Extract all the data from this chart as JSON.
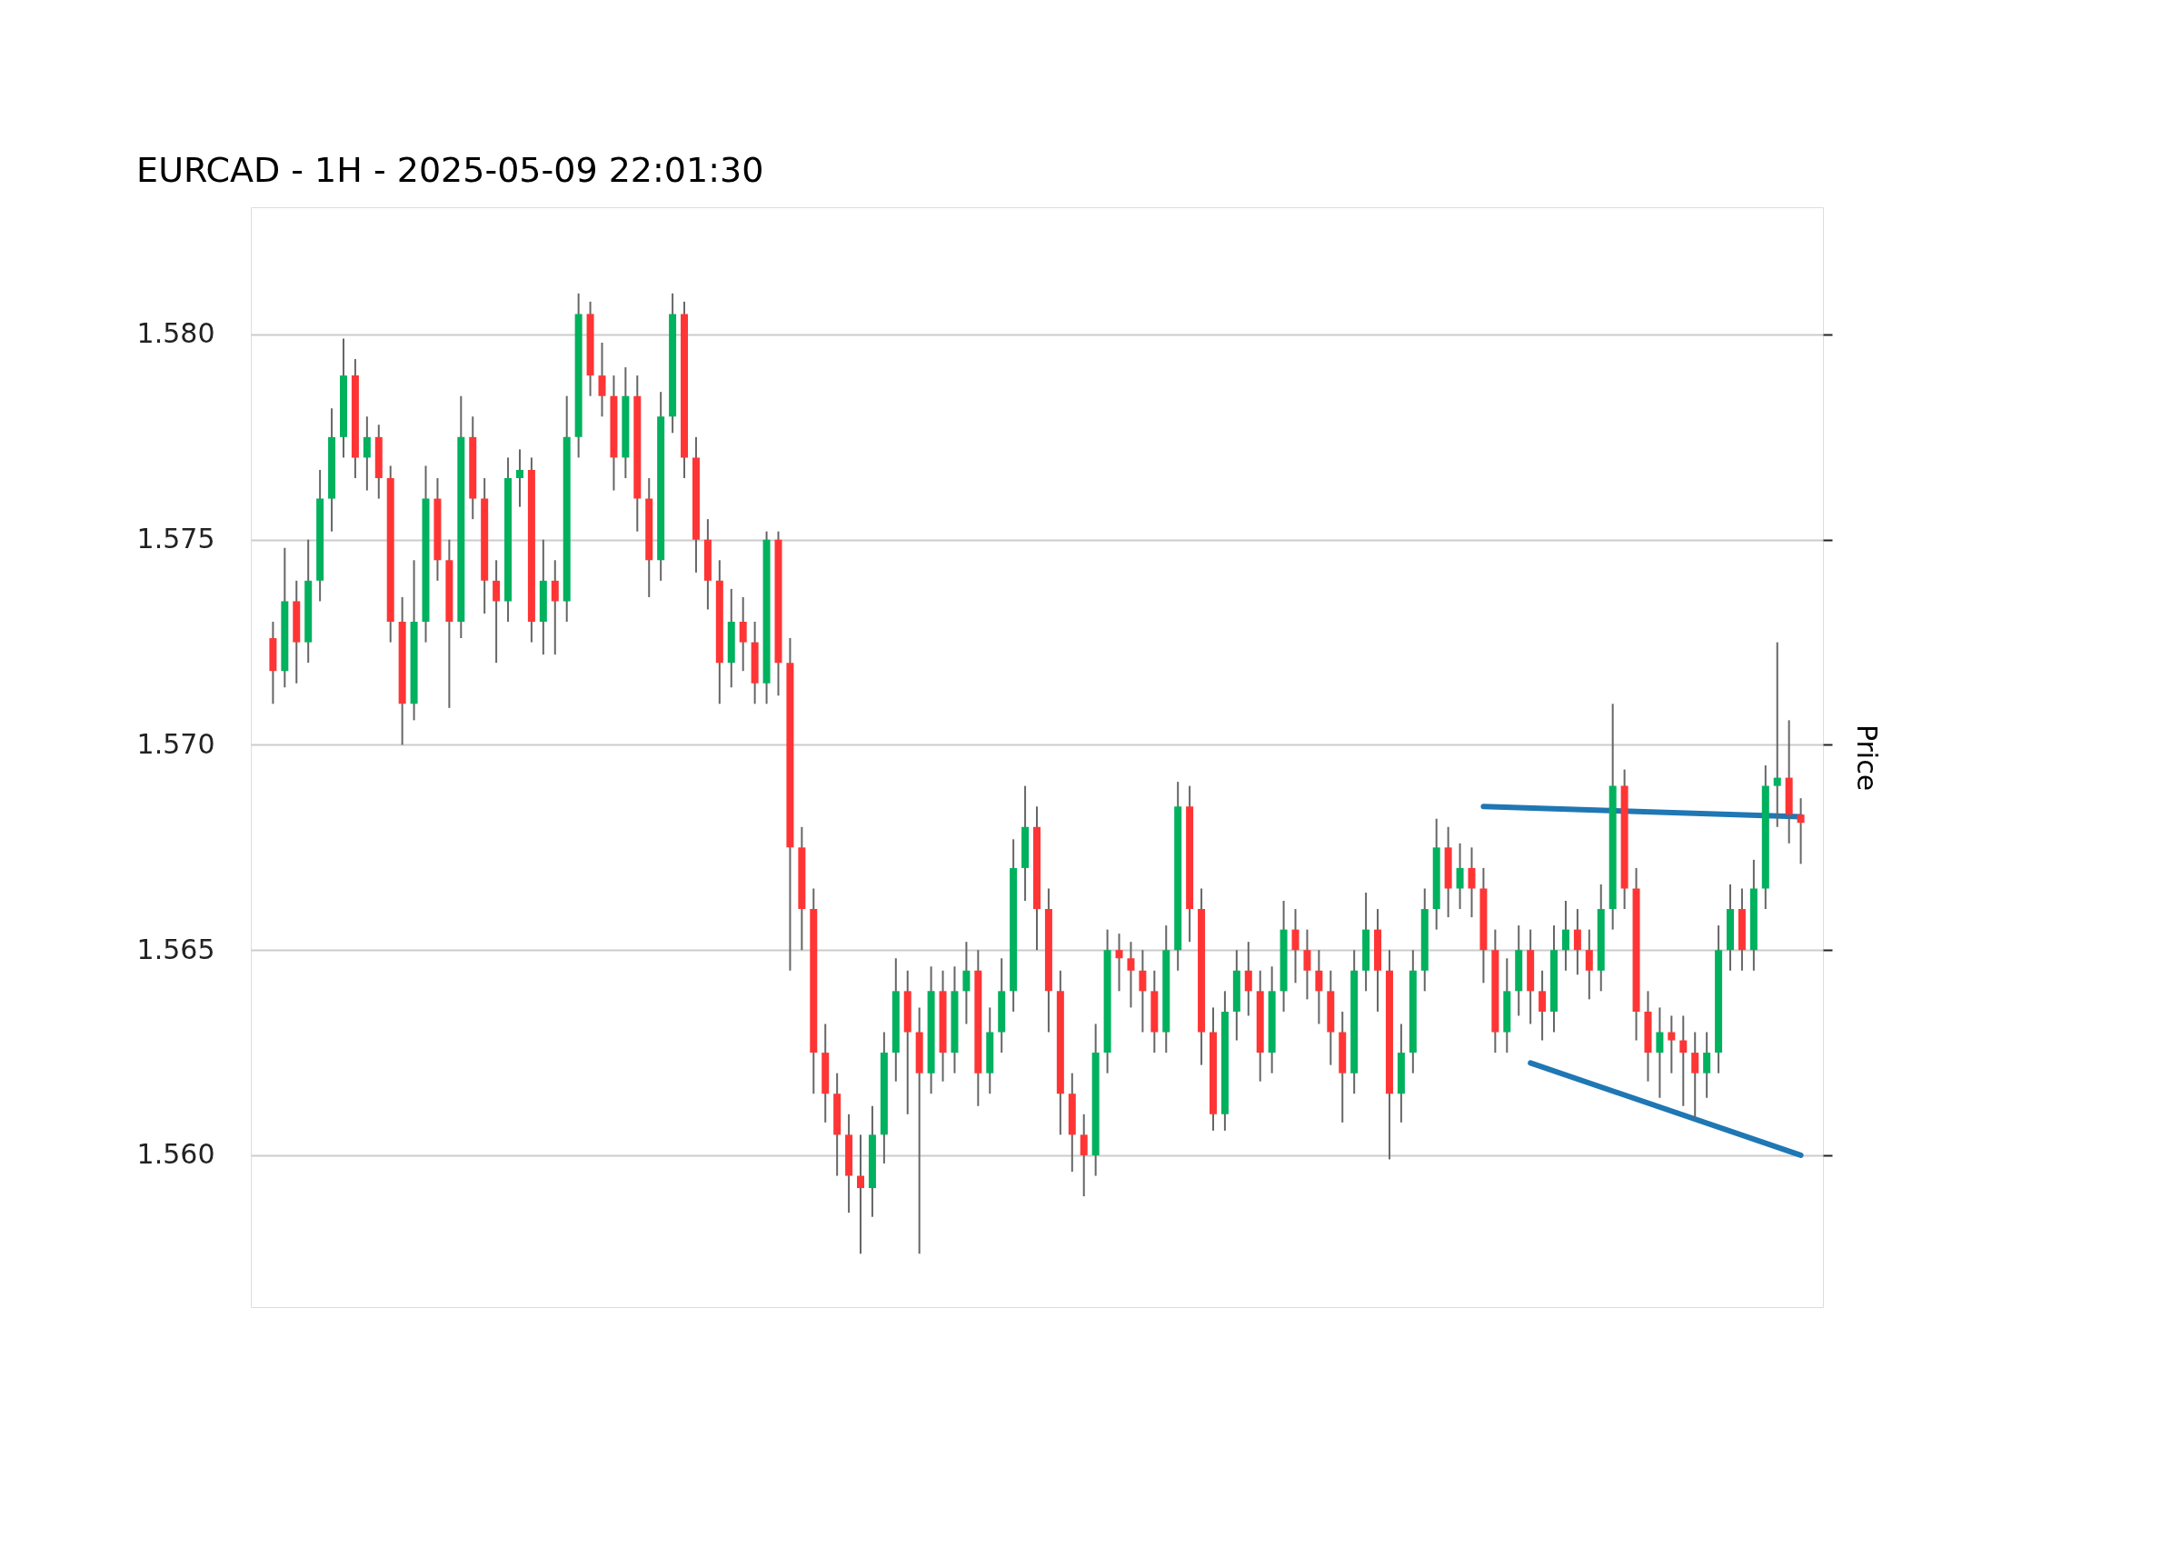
{
  "chart_data": {
    "type": "candlestick",
    "title": "EURCAD - 1H - 2025-05-09 22:01:30",
    "ylabel": "Price",
    "categories": [
      null,
      null,
      null,
      null,
      null,
      null,
      null,
      null,
      null,
      null,
      null,
      null,
      null,
      null,
      null,
      null,
      null,
      null,
      null,
      null,
      null,
      null,
      null,
      null,
      null,
      null,
      null,
      null,
      null,
      null,
      null,
      null,
      null,
      null,
      null,
      null,
      null,
      null,
      null,
      null,
      null,
      null,
      null,
      null,
      null,
      null,
      null,
      null,
      null,
      null,
      null,
      null,
      null,
      null,
      null,
      null,
      null,
      null,
      null,
      null,
      null,
      null,
      null,
      null,
      null,
      null,
      null,
      null,
      null,
      null,
      null,
      null,
      null,
      null,
      null,
      null,
      null,
      null,
      null,
      null,
      null,
      null,
      null,
      null,
      null,
      null,
      null,
      null,
      null,
      null,
      null,
      null,
      null,
      null,
      null,
      null,
      null,
      null,
      null,
      null,
      null,
      null,
      null,
      null,
      null,
      null,
      null,
      null,
      null,
      null,
      null,
      null,
      null,
      null,
      null,
      null,
      null,
      null,
      null,
      null,
      null,
      null,
      null,
      null,
      null,
      null,
      null,
      null,
      null,
      null,
      null
    ],
    "colors": [
      "#ff3535",
      "#00b15e",
      "#ff3535",
      "#00b15e",
      "#00b15e",
      "#00b15e",
      "#00b15e",
      "#ff3535",
      "#00b15e",
      "#ff3535",
      "#ff3535",
      "#ff3535",
      "#00b15e",
      "#00b15e",
      "#ff3535",
      "#ff3535",
      "#00b15e",
      "#ff3535",
      "#ff3535",
      "#ff3535",
      "#00b15e",
      "#00b15e",
      "#ff3535",
      "#00b15e",
      "#ff3535",
      "#00b15e",
      "#00b15e",
      "#ff3535",
      "#ff3535",
      "#ff3535",
      "#00b15e",
      "#ff3535",
      "#ff3535",
      "#00b15e",
      "#00b15e",
      "#ff3535",
      "#ff3535",
      "#ff3535",
      "#ff3535",
      "#00b15e",
      "#ff3535",
      "#ff3535",
      "#00b15e",
      "#ff3535",
      "#ff3535",
      "#ff3535",
      "#ff3535",
      "#ff3535",
      "#ff3535",
      "#ff3535",
      "#ff3535",
      "#00b15e",
      "#00b15e",
      "#00b15e",
      "#ff3535",
      "#ff3535",
      "#00b15e",
      "#ff3535",
      "#00b15e",
      "#00b15e",
      "#ff3535",
      "#00b15e",
      "#00b15e",
      "#00b15e",
      "#00b15e",
      "#ff3535",
      "#ff3535",
      "#ff3535",
      "#ff3535",
      "#ff3535",
      "#00b15e",
      "#00b15e",
      "#ff3535",
      "#ff3535",
      "#ff3535",
      "#ff3535",
      "#00b15e",
      "#00b15e",
      "#ff3535",
      "#ff3535",
      "#ff3535",
      "#00b15e",
      "#00b15e",
      "#ff3535",
      "#ff3535",
      "#00b15e",
      "#00b15e",
      "#ff3535",
      "#ff3535",
      "#ff3535",
      "#ff3535",
      "#ff3535",
      "#00b15e",
      "#00b15e",
      "#ff3535",
      "#ff3535",
      "#00b15e",
      "#00b15e",
      "#00b15e",
      "#00b15e",
      "#ff3535",
      "#00b15e",
      "#ff3535",
      "#ff3535",
      "#ff3535",
      "#00b15e",
      "#00b15e",
      "#ff3535",
      "#ff3535",
      "#00b15e",
      "#00b15e",
      "#ff3535",
      "#ff3535",
      "#00b15e",
      "#00b15e",
      "#ff3535",
      "#ff3535",
      "#ff3535",
      "#00b15e",
      "#ff3535",
      "#ff3535",
      "#ff3535",
      "#00b15e",
      "#00b15e",
      "#00b15e",
      "#ff3535",
      "#00b15e",
      "#00b15e",
      "#00b15e",
      "#ff3535",
      "#ff3535"
    ],
    "ohlc": [
      [
        1.5726,
        1.573,
        1.571,
        1.5718
      ],
      [
        1.5718,
        1.5748,
        1.5714,
        1.5735
      ],
      [
        1.5735,
        1.574,
        1.5715,
        1.5725
      ],
      [
        1.5725,
        1.575,
        1.572,
        1.574
      ],
      [
        1.574,
        1.5767,
        1.5735,
        1.576
      ],
      [
        1.576,
        1.5782,
        1.5752,
        1.5775
      ],
      [
        1.5775,
        1.5799,
        1.577,
        1.579
      ],
      [
        1.579,
        1.5794,
        1.5765,
        1.577
      ],
      [
        1.577,
        1.578,
        1.5762,
        1.5775
      ],
      [
        1.5775,
        1.5778,
        1.576,
        1.5765
      ],
      [
        1.5765,
        1.5768,
        1.5725,
        1.573
      ],
      [
        1.573,
        1.5736,
        1.57,
        1.571
      ],
      [
        1.571,
        1.5745,
        1.5706,
        1.573
      ],
      [
        1.573,
        1.5768,
        1.5725,
        1.576
      ],
      [
        1.576,
        1.5765,
        1.574,
        1.5745
      ],
      [
        1.5745,
        1.575,
        1.5709,
        1.573
      ],
      [
        1.573,
        1.5785,
        1.5726,
        1.5775
      ],
      [
        1.5775,
        1.578,
        1.5755,
        1.576
      ],
      [
        1.576,
        1.5765,
        1.5732,
        1.574
      ],
      [
        1.574,
        1.5745,
        1.572,
        1.5735
      ],
      [
        1.5735,
        1.577,
        1.573,
        1.5765
      ],
      [
        1.5765,
        1.5772,
        1.5758,
        1.5767
      ],
      [
        1.5767,
        1.577,
        1.5725,
        1.573
      ],
      [
        1.573,
        1.575,
        1.5722,
        1.574
      ],
      [
        1.574,
        1.5745,
        1.5722,
        1.5735
      ],
      [
        1.5735,
        1.5785,
        1.573,
        1.5775
      ],
      [
        1.5775,
        1.581,
        1.577,
        1.5805
      ],
      [
        1.5805,
        1.5808,
        1.5785,
        1.579
      ],
      [
        1.579,
        1.5798,
        1.578,
        1.5785
      ],
      [
        1.5785,
        1.579,
        1.5762,
        1.577
      ],
      [
        1.577,
        1.5792,
        1.5765,
        1.5785
      ],
      [
        1.5785,
        1.579,
        1.5752,
        1.576
      ],
      [
        1.576,
        1.5765,
        1.5736,
        1.5745
      ],
      [
        1.5745,
        1.5786,
        1.574,
        1.578
      ],
      [
        1.578,
        1.581,
        1.5776,
        1.5805
      ],
      [
        1.5805,
        1.5808,
        1.5765,
        1.577
      ],
      [
        1.577,
        1.5775,
        1.5742,
        1.575
      ],
      [
        1.575,
        1.5755,
        1.5733,
        1.574
      ],
      [
        1.574,
        1.5745,
        1.571,
        1.572
      ],
      [
        1.572,
        1.5738,
        1.5714,
        1.573
      ],
      [
        1.573,
        1.5736,
        1.5718,
        1.5725
      ],
      [
        1.5725,
        1.573,
        1.571,
        1.5715
      ],
      [
        1.5715,
        1.5752,
        1.571,
        1.575
      ],
      [
        1.575,
        1.5752,
        1.5712,
        1.572
      ],
      [
        1.572,
        1.5726,
        1.5645,
        1.5675
      ],
      [
        1.5675,
        1.568,
        1.565,
        1.566
      ],
      [
        1.566,
        1.5665,
        1.5615,
        1.5625
      ],
      [
        1.5625,
        1.5632,
        1.5608,
        1.5615
      ],
      [
        1.5615,
        1.562,
        1.5595,
        1.5605
      ],
      [
        1.5605,
        1.561,
        1.5586,
        1.5595
      ],
      [
        1.5595,
        1.5605,
        1.5576,
        1.5592
      ],
      [
        1.5592,
        1.5612,
        1.5585,
        1.5605
      ],
      [
        1.5605,
        1.563,
        1.5598,
        1.5625
      ],
      [
        1.5625,
        1.5648,
        1.5618,
        1.564
      ],
      [
        1.564,
        1.5645,
        1.561,
        1.563
      ],
      [
        1.563,
        1.5636,
        1.5576,
        1.562
      ],
      [
        1.562,
        1.5646,
        1.5615,
        1.564
      ],
      [
        1.564,
        1.5645,
        1.5618,
        1.5625
      ],
      [
        1.5625,
        1.5646,
        1.562,
        1.564
      ],
      [
        1.564,
        1.5652,
        1.5632,
        1.5645
      ],
      [
        1.5645,
        1.565,
        1.5612,
        1.562
      ],
      [
        1.562,
        1.5636,
        1.5615,
        1.563
      ],
      [
        1.563,
        1.5648,
        1.5625,
        1.564
      ],
      [
        1.564,
        1.5677,
        1.5635,
        1.567
      ],
      [
        1.567,
        1.569,
        1.5662,
        1.568
      ],
      [
        1.568,
        1.5685,
        1.565,
        1.566
      ],
      [
        1.566,
        1.5665,
        1.563,
        1.564
      ],
      [
        1.564,
        1.5645,
        1.5605,
        1.5615
      ],
      [
        1.5615,
        1.562,
        1.5596,
        1.5605
      ],
      [
        1.5605,
        1.561,
        1.559,
        1.56
      ],
      [
        1.56,
        1.5632,
        1.5595,
        1.5625
      ],
      [
        1.5625,
        1.5655,
        1.562,
        1.565
      ],
      [
        1.565,
        1.5654,
        1.564,
        1.5648
      ],
      [
        1.5648,
        1.5652,
        1.5636,
        1.5645
      ],
      [
        1.5645,
        1.565,
        1.563,
        1.564
      ],
      [
        1.564,
        1.5645,
        1.5625,
        1.563
      ],
      [
        1.563,
        1.5656,
        1.5625,
        1.565
      ],
      [
        1.565,
        1.5691,
        1.5645,
        1.5685
      ],
      [
        1.5685,
        1.569,
        1.5652,
        1.566
      ],
      [
        1.566,
        1.5665,
        1.5622,
        1.563
      ],
      [
        1.563,
        1.5636,
        1.5606,
        1.561
      ],
      [
        1.561,
        1.564,
        1.5606,
        1.5635
      ],
      [
        1.5635,
        1.565,
        1.5628,
        1.5645
      ],
      [
        1.5645,
        1.5652,
        1.5634,
        1.564
      ],
      [
        1.564,
        1.5645,
        1.5618,
        1.5625
      ],
      [
        1.5625,
        1.5646,
        1.562,
        1.564
      ],
      [
        1.564,
        1.5662,
        1.5635,
        1.5655
      ],
      [
        1.5655,
        1.566,
        1.5642,
        1.565
      ],
      [
        1.565,
        1.5655,
        1.5638,
        1.5645
      ],
      [
        1.5645,
        1.565,
        1.5632,
        1.564
      ],
      [
        1.564,
        1.5645,
        1.5622,
        1.563
      ],
      [
        1.563,
        1.5635,
        1.5608,
        1.562
      ],
      [
        1.562,
        1.565,
        1.5615,
        1.5645
      ],
      [
        1.5645,
        1.5664,
        1.564,
        1.5655
      ],
      [
        1.5655,
        1.566,
        1.5635,
        1.5645
      ],
      [
        1.5645,
        1.565,
        1.5599,
        1.5615
      ],
      [
        1.5615,
        1.5632,
        1.5608,
        1.5625
      ],
      [
        1.5625,
        1.565,
        1.562,
        1.5645
      ],
      [
        1.5645,
        1.5665,
        1.564,
        1.566
      ],
      [
        1.566,
        1.5682,
        1.5655,
        1.5675
      ],
      [
        1.5675,
        1.568,
        1.5658,
        1.5665
      ],
      [
        1.5665,
        1.5676,
        1.566,
        1.567
      ],
      [
        1.567,
        1.5675,
        1.5658,
        1.5665
      ],
      [
        1.5665,
        1.567,
        1.5642,
        1.565
      ],
      [
        1.565,
        1.5655,
        1.5625,
        1.563
      ],
      [
        1.563,
        1.5648,
        1.5625,
        1.564
      ],
      [
        1.564,
        1.5656,
        1.5634,
        1.565
      ],
      [
        1.565,
        1.5655,
        1.5632,
        1.564
      ],
      [
        1.564,
        1.5645,
        1.5628,
        1.5635
      ],
      [
        1.5635,
        1.5656,
        1.563,
        1.565
      ],
      [
        1.565,
        1.5662,
        1.5645,
        1.5655
      ],
      [
        1.5655,
        1.566,
        1.5644,
        1.565
      ],
      [
        1.565,
        1.5655,
        1.5638,
        1.5645
      ],
      [
        1.5645,
        1.5666,
        1.564,
        1.566
      ],
      [
        1.566,
        1.571,
        1.5655,
        1.569
      ],
      [
        1.569,
        1.5694,
        1.566,
        1.5665
      ],
      [
        1.5665,
        1.567,
        1.5628,
        1.5635
      ],
      [
        1.5635,
        1.564,
        1.5618,
        1.5625
      ],
      [
        1.5625,
        1.5636,
        1.5614,
        1.563
      ],
      [
        1.563,
        1.5634,
        1.562,
        1.5628
      ],
      [
        1.5628,
        1.5634,
        1.5612,
        1.5625
      ],
      [
        1.5625,
        1.563,
        1.5609,
        1.562
      ],
      [
        1.562,
        1.563,
        1.5614,
        1.5625
      ],
      [
        1.5625,
        1.5656,
        1.562,
        1.565
      ],
      [
        1.565,
        1.5666,
        1.5645,
        1.566
      ],
      [
        1.566,
        1.5665,
        1.5645,
        1.565
      ],
      [
        1.565,
        1.5672,
        1.5645,
        1.5665
      ],
      [
        1.5665,
        1.5695,
        1.566,
        1.569
      ],
      [
        1.569,
        1.5725,
        1.568,
        1.5692
      ],
      [
        1.5692,
        1.5706,
        1.5676,
        1.5683
      ],
      [
        1.5683,
        1.5687,
        1.5671,
        1.5681
      ]
    ],
    "series": [
      {
        "type": "line",
        "color": "#1f77b4",
        "values": [
          null,
          null,
          null,
          null,
          null,
          null,
          null,
          null,
          null,
          null,
          null,
          null,
          null,
          null,
          null,
          null,
          null,
          null,
          null,
          null,
          null,
          null,
          null,
          null,
          null,
          null,
          null,
          null,
          null,
          null,
          null,
          null,
          null,
          null,
          null,
          null,
          null,
          null,
          null,
          null,
          null,
          null,
          null,
          null,
          null,
          null,
          null,
          null,
          null,
          null,
          null,
          null,
          null,
          null,
          null,
          null,
          null,
          null,
          null,
          null,
          null,
          null,
          null,
          null,
          null,
          null,
          null,
          null,
          null,
          null,
          null,
          null,
          null,
          null,
          null,
          null,
          null,
          null,
          null,
          null,
          null,
          null,
          null,
          null,
          null,
          null,
          null,
          null,
          null,
          null,
          null,
          null,
          null,
          null,
          null,
          null,
          null,
          null,
          null,
          null,
          null,
          null,
          null,
          1.5685,
          null,
          null,
          null,
          null,
          null,
          null,
          null,
          null,
          null,
          null,
          null,
          null,
          null,
          null,
          null,
          null,
          null,
          null,
          null,
          null,
          null,
          null,
          null,
          null,
          null,
          null,
          1.56825
        ]
      },
      {
        "type": "line",
        "color": "#1f77b4",
        "values": [
          null,
          null,
          null,
          null,
          null,
          null,
          null,
          null,
          null,
          null,
          null,
          null,
          null,
          null,
          null,
          null,
          null,
          null,
          null,
          null,
          null,
          null,
          null,
          null,
          null,
          null,
          null,
          null,
          null,
          null,
          null,
          null,
          null,
          null,
          null,
          null,
          null,
          null,
          null,
          null,
          null,
          null,
          null,
          null,
          null,
          null,
          null,
          null,
          null,
          null,
          null,
          null,
          null,
          null,
          null,
          null,
          null,
          null,
          null,
          null,
          null,
          null,
          null,
          null,
          null,
          null,
          null,
          null,
          null,
          null,
          null,
          null,
          null,
          null,
          null,
          null,
          null,
          null,
          null,
          null,
          null,
          null,
          null,
          null,
          null,
          null,
          null,
          null,
          null,
          null,
          null,
          null,
          null,
          null,
          null,
          null,
          null,
          null,
          null,
          null,
          null,
          null,
          null,
          null,
          null,
          null,
          null,
          1.56225,
          null,
          null,
          null,
          null,
          null,
          null,
          null,
          null,
          null,
          null,
          null,
          null,
          null,
          null,
          null,
          null,
          null,
          null,
          null,
          null,
          null,
          null,
          1.56
        ]
      }
    ],
    "ylim": [
      1.5563,
      1.5831
    ],
    "yticks": [
      {
        "value": 1.56,
        "label": "1.560"
      },
      {
        "value": 1.565,
        "label": "1.565"
      },
      {
        "value": 1.57,
        "label": "1.570"
      },
      {
        "value": 1.575,
        "label": "1.575"
      },
      {
        "value": 1.58,
        "label": "1.580"
      }
    ],
    "grid": "y",
    "tick_labels": "y"
  }
}
